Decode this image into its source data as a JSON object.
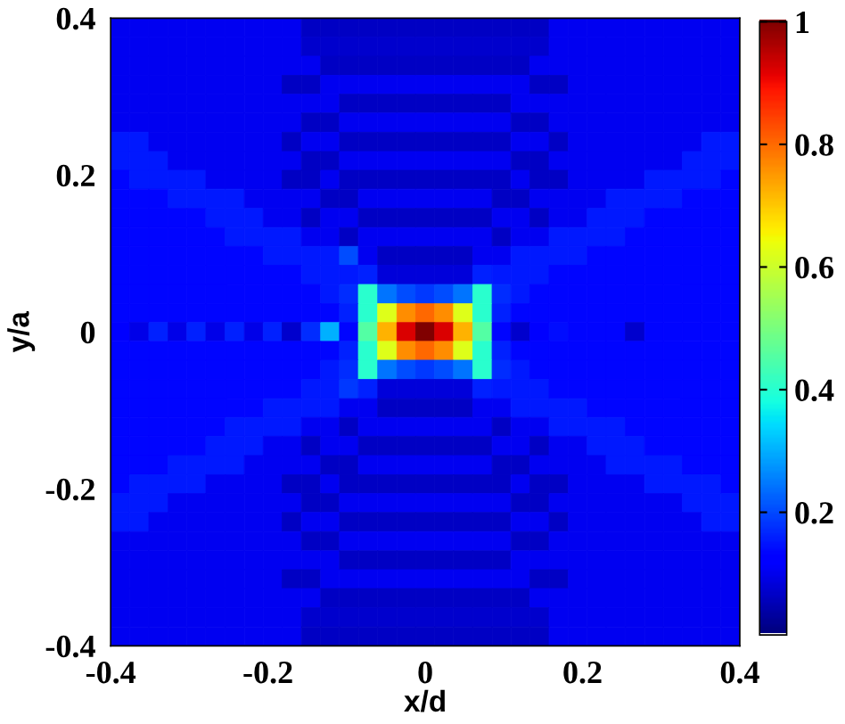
{
  "chart_data": {
    "type": "heatmap",
    "xlabel": "x/d",
    "ylabel": "y/a",
    "x": [
      -0.388,
      -0.364,
      -0.339,
      -0.315,
      -0.291,
      -0.267,
      -0.242,
      -0.218,
      -0.194,
      -0.17,
      -0.145,
      -0.121,
      -0.097,
      -0.073,
      -0.048,
      -0.024,
      0,
      0.024,
      0.048,
      0.073,
      0.097,
      0.121,
      0.145,
      0.17,
      0.194,
      0.218,
      0.242,
      0.267,
      0.291,
      0.315,
      0.339,
      0.364,
      0.388
    ],
    "y": [
      0.388,
      0.364,
      0.339,
      0.315,
      0.291,
      0.267,
      0.242,
      0.218,
      0.194,
      0.17,
      0.145,
      0.121,
      0.097,
      0.073,
      0.048,
      0.024,
      0,
      -0.024,
      -0.048,
      -0.073,
      -0.097,
      -0.121,
      -0.145,
      -0.17,
      -0.194,
      -0.218,
      -0.242,
      -0.267,
      -0.291,
      -0.315,
      -0.339,
      -0.364,
      -0.388
    ],
    "xlim": [
      -0.4,
      0.4
    ],
    "ylim": [
      -0.4,
      0.4
    ],
    "xticks": [
      -0.4,
      -0.2,
      0,
      0.2,
      0.4
    ],
    "yticks": [
      -0.4,
      -0.2,
      0,
      0.2,
      0.4
    ],
    "clim": [
      0,
      1
    ],
    "cticks": [
      0.2,
      0.4,
      0.6,
      0.8,
      1
    ],
    "cells": [
      [
        0.1,
        0.1,
        0.1,
        0.1,
        0.1,
        0.1,
        0.1,
        0.1,
        0.1,
        0.1,
        0.06,
        0.06,
        0.06,
        0.06,
        0.06,
        0.06,
        0.06,
        0.06,
        0.06,
        0.06,
        0.06,
        0.06,
        0.06,
        0.1,
        0.1,
        0.1,
        0.1,
        0.1,
        0.1,
        0.1,
        0.1,
        0.1,
        0.1
      ],
      [
        0.1,
        0.1,
        0.1,
        0.1,
        0.1,
        0.1,
        0.1,
        0.1,
        0.1,
        0.1,
        0.07,
        0.07,
        0.07,
        0.07,
        0.07,
        0.07,
        0.07,
        0.07,
        0.07,
        0.07,
        0.07,
        0.07,
        0.07,
        0.1,
        0.1,
        0.1,
        0.1,
        0.1,
        0.1,
        0.1,
        0.1,
        0.1,
        0.1
      ],
      [
        0.1,
        0.1,
        0.1,
        0.1,
        0.1,
        0.1,
        0.1,
        0.1,
        0.1,
        0.1,
        0.1,
        0.06,
        0.06,
        0.06,
        0.06,
        0.06,
        0.06,
        0.06,
        0.06,
        0.06,
        0.06,
        0.06,
        0.1,
        0.1,
        0.1,
        0.1,
        0.1,
        0.1,
        0.1,
        0.1,
        0.1,
        0.1,
        0.1
      ],
      [
        0.1,
        0.1,
        0.1,
        0.1,
        0.1,
        0.1,
        0.1,
        0.1,
        0.1,
        0.06,
        0.06,
        0.1,
        0.1,
        0.1,
        0.1,
        0.1,
        0.1,
        0.1,
        0.1,
        0.1,
        0.1,
        0.1,
        0.06,
        0.06,
        0.1,
        0.1,
        0.1,
        0.1,
        0.1,
        0.1,
        0.1,
        0.1,
        0.1
      ],
      [
        0.1,
        0.1,
        0.1,
        0.1,
        0.1,
        0.1,
        0.1,
        0.1,
        0.1,
        0.1,
        0.1,
        0.1,
        0.06,
        0.06,
        0.06,
        0.06,
        0.06,
        0.06,
        0.06,
        0.06,
        0.06,
        0.1,
        0.1,
        0.1,
        0.1,
        0.1,
        0.1,
        0.1,
        0.1,
        0.1,
        0.1,
        0.1,
        0.1
      ],
      [
        0.1,
        0.1,
        0.1,
        0.1,
        0.1,
        0.1,
        0.1,
        0.1,
        0.1,
        0.1,
        0.06,
        0.06,
        0.1,
        0.1,
        0.1,
        0.1,
        0.1,
        0.1,
        0.1,
        0.1,
        0.1,
        0.06,
        0.06,
        0.1,
        0.1,
        0.1,
        0.1,
        0.1,
        0.1,
        0.1,
        0.1,
        0.1,
        0.1
      ],
      [
        0.15,
        0.15,
        0.1,
        0.1,
        0.1,
        0.1,
        0.1,
        0.1,
        0.1,
        0.06,
        0.1,
        0.1,
        0.06,
        0.06,
        0.06,
        0.06,
        0.06,
        0.06,
        0.06,
        0.06,
        0.06,
        0.1,
        0.1,
        0.06,
        0.1,
        0.1,
        0.1,
        0.1,
        0.1,
        0.1,
        0.1,
        0.15,
        0.15
      ],
      [
        0.15,
        0.15,
        0.15,
        0.1,
        0.1,
        0.1,
        0.1,
        0.1,
        0.1,
        0.1,
        0.06,
        0.06,
        0.1,
        0.1,
        0.1,
        0.1,
        0.1,
        0.1,
        0.1,
        0.1,
        0.1,
        0.06,
        0.06,
        0.1,
        0.1,
        0.1,
        0.1,
        0.1,
        0.1,
        0.1,
        0.15,
        0.15,
        0.15
      ],
      [
        0.13,
        0.15,
        0.15,
        0.15,
        0.15,
        0.1,
        0.1,
        0.1,
        0.1,
        0.06,
        0.06,
        0.1,
        0.06,
        0.06,
        0.06,
        0.06,
        0.06,
        0.06,
        0.06,
        0.06,
        0.06,
        0.1,
        0.06,
        0.06,
        0.1,
        0.1,
        0.1,
        0.1,
        0.15,
        0.15,
        0.15,
        0.15,
        0.13
      ],
      [
        0.13,
        0.13,
        0.13,
        0.15,
        0.15,
        0.15,
        0.15,
        0.1,
        0.1,
        0.1,
        0.1,
        0.06,
        0.06,
        0.1,
        0.1,
        0.1,
        0.1,
        0.1,
        0.1,
        0.1,
        0.06,
        0.06,
        0.1,
        0.1,
        0.1,
        0.1,
        0.15,
        0.15,
        0.15,
        0.15,
        0.13,
        0.13,
        0.13
      ],
      [
        0.13,
        0.13,
        0.13,
        0.13,
        0.13,
        0.15,
        0.15,
        0.15,
        0.1,
        0.1,
        0.06,
        0.1,
        0.1,
        0.06,
        0.06,
        0.06,
        0.06,
        0.06,
        0.06,
        0.06,
        0.1,
        0.1,
        0.06,
        0.1,
        0.1,
        0.15,
        0.15,
        0.15,
        0.13,
        0.13,
        0.13,
        0.13,
        0.13
      ],
      [
        0.13,
        0.13,
        0.13,
        0.13,
        0.13,
        0.13,
        0.15,
        0.15,
        0.15,
        0.15,
        0.1,
        0.1,
        0.06,
        0.1,
        0.1,
        0.1,
        0.1,
        0.1,
        0.1,
        0.1,
        0.06,
        0.1,
        0.1,
        0.15,
        0.15,
        0.15,
        0.15,
        0.13,
        0.13,
        0.13,
        0.13,
        0.13,
        0.13
      ],
      [
        0.13,
        0.13,
        0.13,
        0.13,
        0.13,
        0.13,
        0.13,
        0.13,
        0.15,
        0.15,
        0.15,
        0.15,
        0.2,
        0.1,
        0.06,
        0.06,
        0.06,
        0.06,
        0.06,
        0.1,
        0.1,
        0.15,
        0.15,
        0.15,
        0.15,
        0.13,
        0.13,
        0.13,
        0.13,
        0.13,
        0.13,
        0.13,
        0.13
      ],
      [
        0.13,
        0.13,
        0.13,
        0.13,
        0.13,
        0.13,
        0.13,
        0.13,
        0.13,
        0.13,
        0.15,
        0.15,
        0.15,
        0.16,
        0.08,
        0.08,
        0.08,
        0.08,
        0.08,
        0.16,
        0.15,
        0.15,
        0.15,
        0.13,
        0.13,
        0.13,
        0.13,
        0.13,
        0.13,
        0.13,
        0.13,
        0.13,
        0.13
      ],
      [
        0.13,
        0.13,
        0.13,
        0.13,
        0.13,
        0.13,
        0.13,
        0.13,
        0.13,
        0.13,
        0.13,
        0.15,
        0.17,
        0.4,
        0.24,
        0.2,
        0.18,
        0.2,
        0.24,
        0.4,
        0.17,
        0.15,
        0.13,
        0.13,
        0.13,
        0.13,
        0.13,
        0.13,
        0.13,
        0.13,
        0.13,
        0.13,
        0.13
      ],
      [
        0.13,
        0.13,
        0.13,
        0.13,
        0.13,
        0.13,
        0.13,
        0.13,
        0.13,
        0.13,
        0.13,
        0.13,
        0.16,
        0.4,
        0.62,
        0.76,
        0.8,
        0.76,
        0.62,
        0.4,
        0.16,
        0.13,
        0.13,
        0.13,
        0.13,
        0.13,
        0.13,
        0.13,
        0.13,
        0.13,
        0.13,
        0.13,
        0.13
      ],
      [
        0.12,
        0.09,
        0.16,
        0.09,
        0.16,
        0.09,
        0.16,
        0.09,
        0.16,
        0.07,
        0.17,
        0.3,
        0.13,
        0.45,
        0.72,
        0.92,
        1,
        0.92,
        0.72,
        0.45,
        0.13,
        0.07,
        0.12,
        0.14,
        0.13,
        0.13,
        0.13,
        0.07,
        0.13,
        0.13,
        0.13,
        0.13,
        0.13
      ],
      [
        0.13,
        0.13,
        0.13,
        0.13,
        0.13,
        0.13,
        0.13,
        0.13,
        0.13,
        0.13,
        0.13,
        0.13,
        0.16,
        0.4,
        0.62,
        0.76,
        0.8,
        0.76,
        0.62,
        0.4,
        0.16,
        0.13,
        0.13,
        0.13,
        0.13,
        0.13,
        0.13,
        0.13,
        0.13,
        0.13,
        0.13,
        0.13,
        0.13
      ],
      [
        0.13,
        0.13,
        0.13,
        0.13,
        0.13,
        0.13,
        0.13,
        0.13,
        0.13,
        0.13,
        0.13,
        0.15,
        0.17,
        0.4,
        0.24,
        0.2,
        0.18,
        0.2,
        0.24,
        0.4,
        0.17,
        0.15,
        0.13,
        0.13,
        0.13,
        0.13,
        0.13,
        0.13,
        0.13,
        0.13,
        0.13,
        0.13,
        0.13
      ],
      [
        0.13,
        0.13,
        0.13,
        0.13,
        0.13,
        0.13,
        0.13,
        0.13,
        0.13,
        0.13,
        0.15,
        0.15,
        0.18,
        0.16,
        0.08,
        0.08,
        0.08,
        0.08,
        0.08,
        0.16,
        0.15,
        0.15,
        0.15,
        0.13,
        0.13,
        0.13,
        0.13,
        0.13,
        0.13,
        0.13,
        0.13,
        0.13,
        0.13
      ],
      [
        0.13,
        0.13,
        0.13,
        0.13,
        0.13,
        0.13,
        0.13,
        0.13,
        0.15,
        0.15,
        0.15,
        0.15,
        0.1,
        0.1,
        0.06,
        0.06,
        0.06,
        0.06,
        0.06,
        0.1,
        0.1,
        0.15,
        0.15,
        0.15,
        0.15,
        0.13,
        0.13,
        0.13,
        0.13,
        0.13,
        0.13,
        0.13,
        0.13
      ],
      [
        0.13,
        0.13,
        0.13,
        0.13,
        0.13,
        0.13,
        0.15,
        0.15,
        0.15,
        0.15,
        0.1,
        0.1,
        0.06,
        0.1,
        0.1,
        0.1,
        0.1,
        0.1,
        0.1,
        0.1,
        0.06,
        0.1,
        0.1,
        0.15,
        0.15,
        0.15,
        0.15,
        0.13,
        0.13,
        0.13,
        0.13,
        0.13,
        0.13
      ],
      [
        0.13,
        0.13,
        0.13,
        0.13,
        0.13,
        0.15,
        0.15,
        0.15,
        0.1,
        0.1,
        0.06,
        0.1,
        0.1,
        0.06,
        0.06,
        0.06,
        0.06,
        0.06,
        0.06,
        0.06,
        0.1,
        0.1,
        0.06,
        0.1,
        0.1,
        0.15,
        0.15,
        0.15,
        0.13,
        0.13,
        0.13,
        0.13,
        0.13
      ],
      [
        0.13,
        0.13,
        0.13,
        0.15,
        0.15,
        0.15,
        0.15,
        0.1,
        0.1,
        0.1,
        0.1,
        0.06,
        0.06,
        0.1,
        0.1,
        0.1,
        0.1,
        0.1,
        0.1,
        0.1,
        0.06,
        0.06,
        0.1,
        0.1,
        0.1,
        0.1,
        0.15,
        0.15,
        0.15,
        0.15,
        0.13,
        0.13,
        0.13
      ],
      [
        0.13,
        0.15,
        0.15,
        0.15,
        0.15,
        0.1,
        0.1,
        0.1,
        0.1,
        0.06,
        0.06,
        0.1,
        0.06,
        0.06,
        0.06,
        0.06,
        0.06,
        0.06,
        0.06,
        0.06,
        0.06,
        0.1,
        0.06,
        0.06,
        0.1,
        0.1,
        0.1,
        0.1,
        0.15,
        0.15,
        0.15,
        0.15,
        0.13
      ],
      [
        0.15,
        0.15,
        0.15,
        0.1,
        0.1,
        0.1,
        0.1,
        0.1,
        0.1,
        0.1,
        0.06,
        0.06,
        0.1,
        0.1,
        0.1,
        0.1,
        0.1,
        0.1,
        0.1,
        0.1,
        0.1,
        0.06,
        0.06,
        0.1,
        0.1,
        0.1,
        0.1,
        0.1,
        0.1,
        0.1,
        0.15,
        0.15,
        0.15
      ],
      [
        0.15,
        0.15,
        0.1,
        0.1,
        0.1,
        0.1,
        0.1,
        0.1,
        0.1,
        0.06,
        0.1,
        0.1,
        0.06,
        0.06,
        0.06,
        0.06,
        0.06,
        0.06,
        0.06,
        0.06,
        0.06,
        0.1,
        0.1,
        0.06,
        0.1,
        0.1,
        0.1,
        0.1,
        0.1,
        0.1,
        0.1,
        0.15,
        0.15
      ],
      [
        0.1,
        0.1,
        0.1,
        0.1,
        0.1,
        0.1,
        0.1,
        0.1,
        0.1,
        0.1,
        0.06,
        0.06,
        0.1,
        0.1,
        0.1,
        0.1,
        0.1,
        0.1,
        0.1,
        0.1,
        0.1,
        0.06,
        0.06,
        0.1,
        0.1,
        0.1,
        0.1,
        0.1,
        0.1,
        0.1,
        0.1,
        0.1,
        0.1
      ],
      [
        0.1,
        0.1,
        0.1,
        0.1,
        0.1,
        0.1,
        0.1,
        0.1,
        0.1,
        0.1,
        0.1,
        0.1,
        0.06,
        0.06,
        0.06,
        0.06,
        0.06,
        0.06,
        0.06,
        0.06,
        0.06,
        0.1,
        0.1,
        0.1,
        0.1,
        0.1,
        0.1,
        0.1,
        0.1,
        0.1,
        0.1,
        0.1,
        0.1
      ],
      [
        0.1,
        0.1,
        0.1,
        0.1,
        0.1,
        0.1,
        0.1,
        0.1,
        0.1,
        0.06,
        0.06,
        0.1,
        0.1,
        0.1,
        0.1,
        0.1,
        0.1,
        0.1,
        0.1,
        0.1,
        0.1,
        0.1,
        0.06,
        0.06,
        0.1,
        0.1,
        0.1,
        0.1,
        0.1,
        0.1,
        0.1,
        0.1,
        0.1
      ],
      [
        0.1,
        0.1,
        0.1,
        0.1,
        0.1,
        0.1,
        0.1,
        0.1,
        0.1,
        0.1,
        0.1,
        0.06,
        0.06,
        0.06,
        0.06,
        0.06,
        0.06,
        0.06,
        0.06,
        0.06,
        0.06,
        0.06,
        0.1,
        0.1,
        0.1,
        0.1,
        0.1,
        0.1,
        0.1,
        0.1,
        0.1,
        0.1,
        0.1
      ],
      [
        0.1,
        0.1,
        0.1,
        0.1,
        0.1,
        0.1,
        0.1,
        0.1,
        0.1,
        0.1,
        0.07,
        0.07,
        0.07,
        0.07,
        0.07,
        0.07,
        0.07,
        0.07,
        0.07,
        0.07,
        0.07,
        0.07,
        0.07,
        0.1,
        0.1,
        0.1,
        0.1,
        0.1,
        0.1,
        0.1,
        0.1,
        0.1,
        0.1
      ],
      [
        0.1,
        0.1,
        0.1,
        0.1,
        0.1,
        0.1,
        0.1,
        0.1,
        0.1,
        0.1,
        0.06,
        0.06,
        0.06,
        0.06,
        0.06,
        0.06,
        0.06,
        0.06,
        0.06,
        0.06,
        0.06,
        0.06,
        0.06,
        0.1,
        0.1,
        0.1,
        0.1,
        0.1,
        0.1,
        0.1,
        0.1,
        0.1,
        0.1
      ]
    ]
  }
}
